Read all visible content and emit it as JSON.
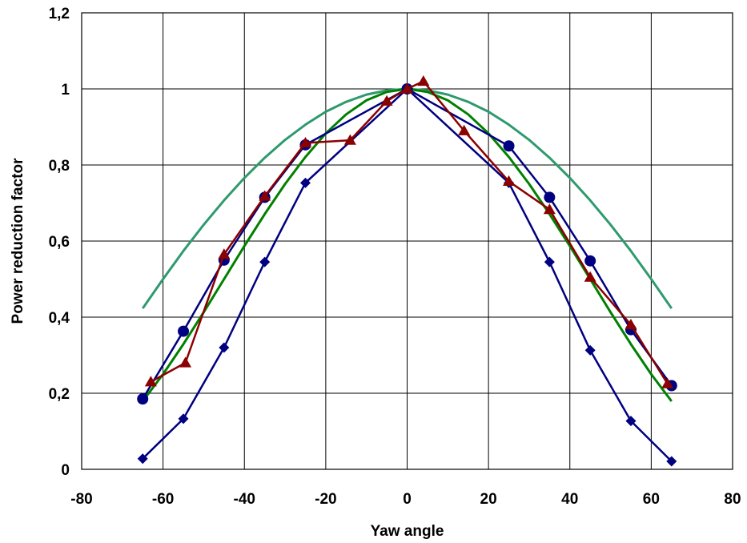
{
  "chart_data": {
    "type": "line",
    "title": "",
    "xlabel": "Yaw angle",
    "ylabel": "Power reduction factor",
    "xlim": [
      -80,
      80
    ],
    "ylim": [
      0,
      1.2
    ],
    "x_ticks": [
      -80,
      -60,
      -40,
      -20,
      0,
      20,
      40,
      60,
      80
    ],
    "x_tick_labels": [
      "-80",
      "-60",
      "-40",
      "-20",
      "0",
      "20",
      "40",
      "60",
      "80"
    ],
    "y_ticks": [
      0,
      0.2,
      0.4,
      0.6,
      0.8,
      1.0,
      1.2
    ],
    "y_tick_labels": [
      "0",
      "0,2",
      "0,4",
      "0,6",
      "0,8",
      "1",
      "1,2"
    ],
    "grid": true,
    "legend": "none",
    "series": [
      {
        "marker": "line",
        "color": "#2e9a6e",
        "x": [
          -65,
          -60,
          -55,
          -50,
          -45,
          -40,
          -35,
          -30,
          -25,
          -20,
          -15,
          -10,
          -5,
          0,
          5,
          10,
          15,
          20,
          25,
          30,
          35,
          40,
          45,
          50,
          55,
          60,
          65
        ],
        "y": [
          0.423,
          0.5,
          0.574,
          0.643,
          0.707,
          0.766,
          0.819,
          0.866,
          0.906,
          0.94,
          0.966,
          0.985,
          0.996,
          1.0,
          0.996,
          0.985,
          0.966,
          0.94,
          0.906,
          0.866,
          0.819,
          0.766,
          0.707,
          0.643,
          0.574,
          0.5,
          0.423
        ]
      },
      {
        "marker": "line",
        "color": "#008000",
        "x": [
          -65,
          -60,
          -55,
          -50,
          -45,
          -40,
          -35,
          -30,
          -25,
          -20,
          -15,
          -10,
          -5,
          0,
          5,
          10,
          15,
          20,
          25,
          30,
          35,
          40,
          45,
          50,
          55,
          60,
          65
        ],
        "y": [
          0.179,
          0.25,
          0.329,
          0.413,
          0.5,
          0.587,
          0.671,
          0.75,
          0.821,
          0.883,
          0.933,
          0.97,
          0.992,
          1.0,
          0.992,
          0.97,
          0.933,
          0.883,
          0.821,
          0.75,
          0.671,
          0.587,
          0.5,
          0.413,
          0.329,
          0.25,
          0.179
        ]
      },
      {
        "marker": "circle",
        "color": "#000080",
        "x": [
          -65,
          -55,
          -45,
          -35,
          -25,
          0,
          25,
          35,
          45,
          55,
          65
        ],
        "y": [
          0.185,
          0.363,
          0.55,
          0.715,
          0.853,
          1.0,
          0.85,
          0.715,
          0.548,
          0.367,
          0.22
        ]
      },
      {
        "marker": "diamond",
        "color": "#000080",
        "x": [
          -65,
          -55,
          -45,
          -35,
          -25,
          0,
          25,
          35,
          45,
          55,
          65
        ],
        "y": [
          0.028,
          0.133,
          0.32,
          0.545,
          0.753,
          1.0,
          0.753,
          0.545,
          0.313,
          0.127,
          0.021
        ]
      },
      {
        "marker": "triangle",
        "color": "#8b0000",
        "x": [
          -63,
          -54.5,
          -45,
          -35,
          -25,
          -14,
          -5,
          0,
          4,
          14,
          25,
          35,
          45,
          55,
          64
        ],
        "y": [
          0.23,
          0.28,
          0.565,
          0.718,
          0.858,
          0.865,
          0.968,
          1.0,
          1.02,
          0.89,
          0.757,
          0.683,
          0.505,
          0.38,
          0.225
        ]
      }
    ]
  }
}
